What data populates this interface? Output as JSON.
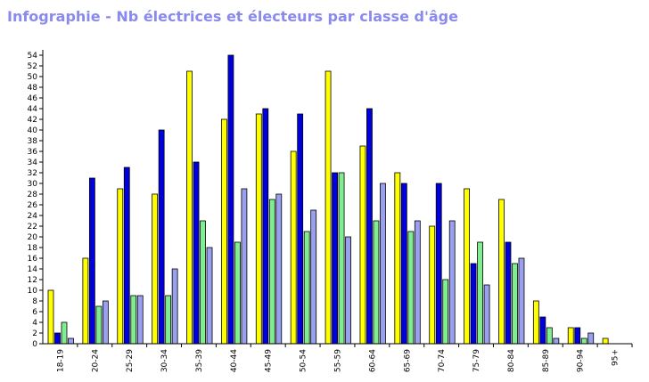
{
  "chart_data": {
    "type": "bar",
    "title": "Infographie - Nb électrices et électeurs par classe d'âge",
    "categories": [
      "18-19",
      "20-24",
      "25-29",
      "30-34",
      "35-39",
      "40-44",
      "45-49",
      "50-54",
      "55-59",
      "60-64",
      "65-69",
      "70-74",
      "75-79",
      "80-84",
      "85-89",
      "90-94",
      "95+"
    ],
    "series": [
      {
        "color": "#ffff00",
        "values": [
          10,
          16,
          29,
          28,
          51,
          42,
          43,
          36,
          51,
          37,
          32,
          22,
          29,
          27,
          8,
          3,
          1
        ]
      },
      {
        "color": "#0000dd",
        "values": [
          2,
          31,
          33,
          40,
          34,
          54,
          44,
          43,
          32,
          44,
          30,
          30,
          15,
          19,
          5,
          3,
          0
        ]
      },
      {
        "color": "#80ee90",
        "values": [
          4,
          7,
          9,
          9,
          23,
          19,
          27,
          21,
          32,
          23,
          21,
          12,
          19,
          15,
          3,
          1,
          0
        ]
      },
      {
        "color": "#9aa0f0",
        "values": [
          1,
          8,
          9,
          14,
          18,
          29,
          28,
          25,
          20,
          30,
          23,
          23,
          11,
          16,
          1,
          2,
          0
        ]
      }
    ],
    "yticks": [
      "0",
      "2",
      "4",
      "6",
      "8",
      "10",
      "12",
      "14",
      "16",
      "18",
      "20",
      "22",
      "24",
      "26",
      "28",
      "30",
      "32",
      "34",
      "36",
      "38",
      "40",
      "42",
      "44",
      "46",
      "48",
      "50",
      "52",
      "54"
    ],
    "ylim": [
      0,
      55
    ],
    "grid": false,
    "legend": "none"
  }
}
